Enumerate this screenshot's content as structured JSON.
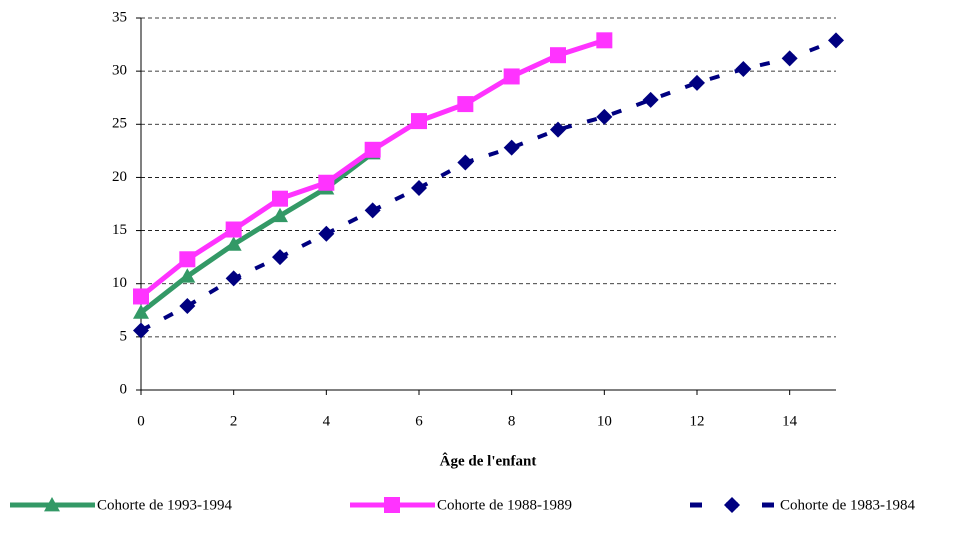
{
  "chart_data": {
    "type": "line",
    "xlabel": "Âge de l'enfant",
    "xlim": [
      0,
      15
    ],
    "xticks": [
      0,
      2,
      4,
      6,
      8,
      10,
      12,
      14
    ],
    "ylim": [
      0,
      35
    ],
    "yticks": [
      0,
      5,
      10,
      15,
      20,
      25,
      30,
      35
    ],
    "grid": true,
    "legend": "bottom",
    "series": [
      {
        "name": "Cohorte de 1993-1994",
        "color": "#339966",
        "marker": "triangle",
        "dash": false,
        "x": [
          0,
          1,
          2,
          3,
          4,
          5
        ],
        "values": [
          7.3,
          10.7,
          13.7,
          16.4,
          19,
          22.3
        ]
      },
      {
        "name": "Cohorte de 1988-1989",
        "color": "#ff33ff",
        "marker": "square",
        "dash": false,
        "x": [
          0,
          1,
          2,
          3,
          4,
          5,
          6,
          7,
          8,
          9,
          10
        ],
        "values": [
          8.8,
          12.3,
          15.1,
          18,
          19.5,
          22.6,
          25.3,
          26.9,
          29.5,
          31.5,
          32.9
        ]
      },
      {
        "name": "Cohorte de 1983-1984",
        "color": "#000080",
        "marker": "diamond",
        "dash": true,
        "x": [
          0,
          1,
          2,
          3,
          4,
          5,
          6,
          7,
          8,
          9,
          10,
          11,
          12,
          13,
          14,
          15
        ],
        "values": [
          5.6,
          7.9,
          10.5,
          12.5,
          14.7,
          16.9,
          19,
          21.4,
          22.8,
          24.5,
          25.7,
          27.3,
          28.9,
          30.2,
          31.2,
          32.9
        ]
      }
    ]
  }
}
